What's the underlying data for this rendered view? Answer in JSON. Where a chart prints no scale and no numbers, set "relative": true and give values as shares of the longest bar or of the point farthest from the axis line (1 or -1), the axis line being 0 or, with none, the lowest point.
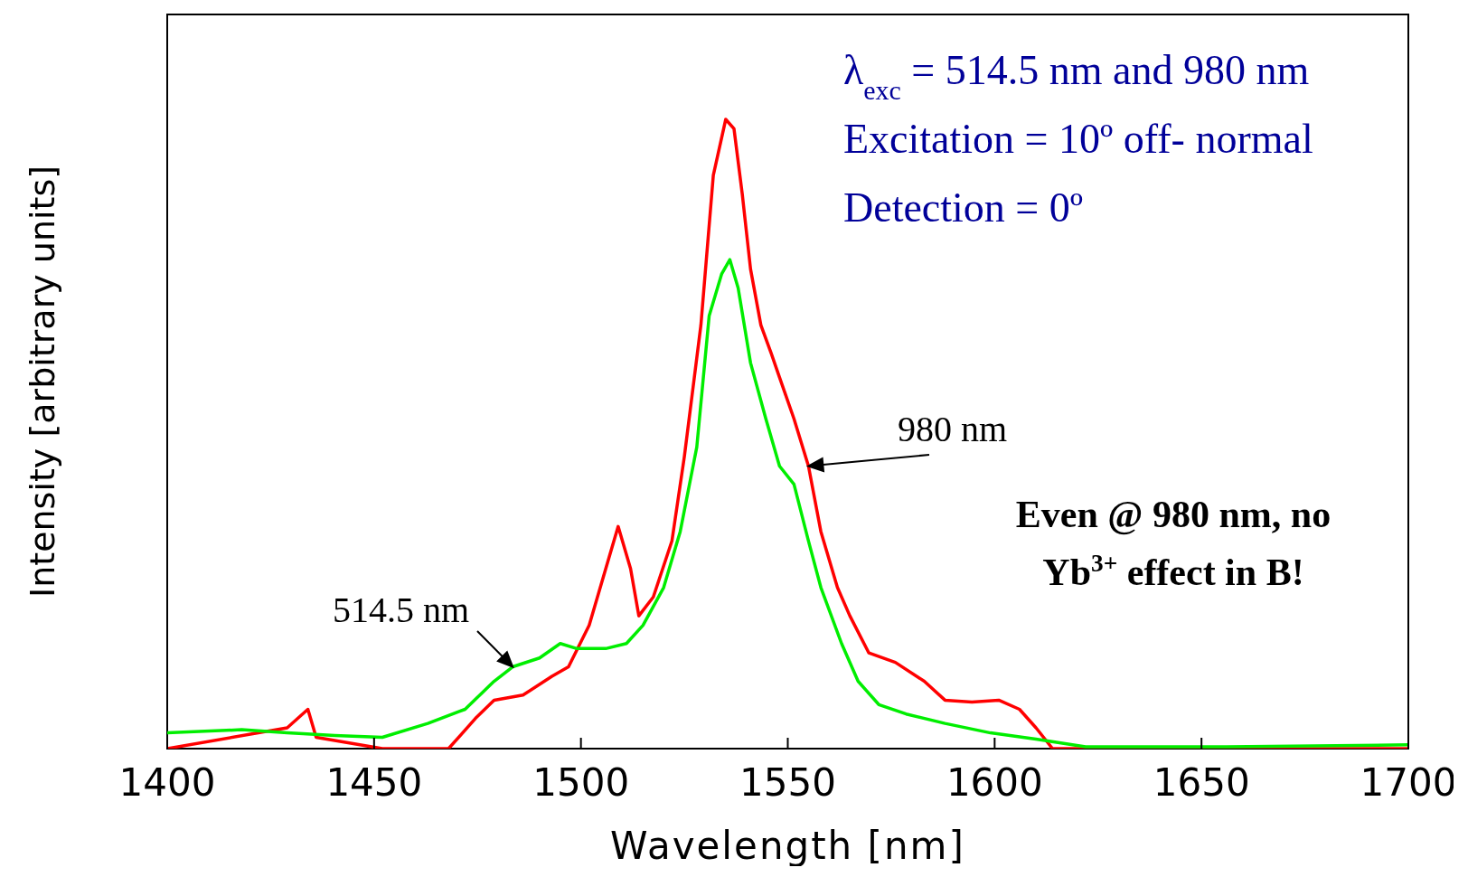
{
  "chart_data": {
    "type": "line",
    "relative": true,
    "xlabel": "Wavelength [nm]",
    "ylabel": "Intensity [arbitrary units]",
    "xlim": [
      1400,
      1700
    ],
    "xticks": [
      1400,
      1450,
      1500,
      1550,
      1600,
      1650,
      1700
    ],
    "series": [
      {
        "name": "980 nm",
        "color": "#ff0000",
        "x": [
          1400,
          1429,
          1434,
          1436,
          1452,
          1468,
          1474.5,
          1479,
          1486,
          1493,
          1497,
          1502,
          1506,
          1509,
          1512,
          1514,
          1517.5,
          1522,
          1525,
          1529,
          1532,
          1535,
          1537,
          1539,
          1541,
          1543.5,
          1546,
          1548,
          1551.5,
          1555,
          1558,
          1562,
          1565,
          1569.6,
          1576,
          1583,
          1588,
          1594.5,
          1601,
          1606,
          1610,
          1614,
          1700
        ],
        "values": [
          0,
          0.033,
          0.0625,
          0.018,
          0,
          0,
          0.048,
          0.077,
          0.085,
          0.115,
          0.13,
          0.196,
          0.286,
          0.353,
          0.286,
          0.211,
          0.241,
          0.33,
          0.464,
          0.673,
          0.911,
          1,
          0.985,
          0.881,
          0.762,
          0.673,
          0.628,
          0.59,
          0.524,
          0.449,
          0.345,
          0.256,
          0.211,
          0.152,
          0.137,
          0.107,
          0.077,
          0.074,
          0.077,
          0.0625,
          0.033,
          0,
          0
        ]
      },
      {
        "name": "514.5 nm",
        "color": "#00ee00",
        "x": [
          1400,
          1418,
          1429,
          1440.5,
          1452,
          1463,
          1472,
          1479,
          1483.5,
          1490,
          1495,
          1499,
          1506,
          1511,
          1515,
          1520,
          1524,
          1528,
          1531,
          1534,
          1536,
          1538,
          1541,
          1544.7,
          1548,
          1551.5,
          1555,
          1558,
          1563,
          1567,
          1572,
          1578.6,
          1588,
          1599,
          1610,
          1622,
          1656,
          1700
        ],
        "values": [
          0.025,
          0.03,
          0.025,
          0.021,
          0.018,
          0.04,
          0.0625,
          0.107,
          0.13,
          0.144,
          0.167,
          0.159,
          0.159,
          0.167,
          0.196,
          0.256,
          0.345,
          0.479,
          0.688,
          0.754,
          0.777,
          0.732,
          0.613,
          0.524,
          0.449,
          0.42,
          0.33,
          0.256,
          0.167,
          0.107,
          0.07,
          0.055,
          0.04,
          0.025,
          0.015,
          0.003,
          0.003,
          0.006
        ]
      }
    ],
    "annotations": [
      "λ$_{exc}$ = 514.5 nm and 980 nm",
      "Excitation = 10º off- normal",
      "Detection = 0º",
      "Even @ 980 nm, no Yb$^{3+}$ effect in B!"
    ],
    "line_style": "solid",
    "marker": "none"
  }
}
